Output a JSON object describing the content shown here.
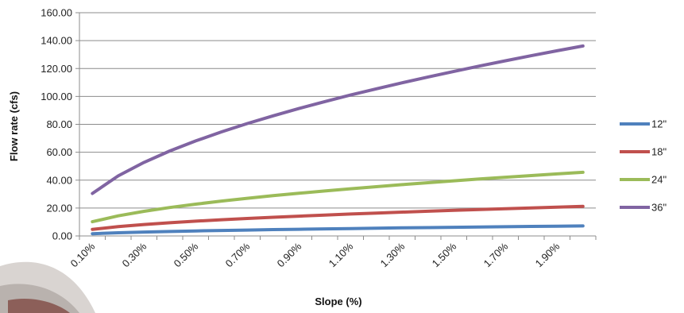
{
  "chart_data": {
    "type": "line",
    "title": "",
    "xlabel": "Slope (%)",
    "ylabel": "Flow rate (cfs)",
    "ylim": [
      0,
      160
    ],
    "y_ticks": [
      "0.00",
      "20.00",
      "40.00",
      "60.00",
      "80.00",
      "100.00",
      "120.00",
      "140.00",
      "160.00"
    ],
    "x": [
      "0.10%",
      "0.20%",
      "0.30%",
      "0.40%",
      "0.50%",
      "0.60%",
      "0.70%",
      "0.80%",
      "0.90%",
      "1.00%",
      "1.10%",
      "1.20%",
      "1.30%",
      "1.40%",
      "1.50%",
      "1.60%",
      "1.70%",
      "1.80%",
      "1.90%",
      "2.00%"
    ],
    "x_tick_labels": [
      "0.10%",
      "0.30%",
      "0.50%",
      "0.70%",
      "0.90%",
      "1.10%",
      "1.30%",
      "1.50%",
      "1.70%",
      "1.90%"
    ],
    "grid": "horizontal",
    "legend_position": "right",
    "series": [
      {
        "name": "12\"",
        "color": "#4F81BD",
        "values": [
          1.6,
          2.27,
          2.78,
          3.21,
          3.59,
          3.93,
          4.24,
          4.54,
          4.81,
          5.07,
          5.32,
          5.56,
          5.78,
          6.0,
          6.21,
          6.42,
          6.62,
          6.81,
          7.0,
          7.18
        ]
      },
      {
        "name": "18\"",
        "color": "#C0504D",
        "values": [
          4.73,
          6.69,
          8.2,
          9.47,
          10.59,
          11.6,
          12.52,
          13.39,
          14.2,
          14.97,
          15.7,
          16.39,
          17.06,
          17.71,
          18.33,
          18.93,
          19.52,
          20.09,
          20.64,
          21.17
        ]
      },
      {
        "name": "24\"",
        "color": "#9BBB59",
        "values": [
          10.2,
          14.42,
          17.66,
          20.39,
          22.8,
          24.98,
          26.98,
          28.85,
          30.6,
          32.25,
          33.83,
          35.33,
          36.77,
          38.16,
          39.5,
          40.8,
          42.05,
          43.27,
          44.46,
          45.61
        ]
      },
      {
        "name": "36\"",
        "color": "#8064A2",
        "values": [
          30.45,
          43.06,
          52.74,
          60.9,
          68.09,
          74.59,
          80.56,
          86.12,
          91.35,
          96.29,
          100.99,
          105.48,
          109.79,
          113.94,
          117.94,
          121.8,
          125.55,
          129.19,
          132.73,
          136.17
        ]
      }
    ]
  }
}
